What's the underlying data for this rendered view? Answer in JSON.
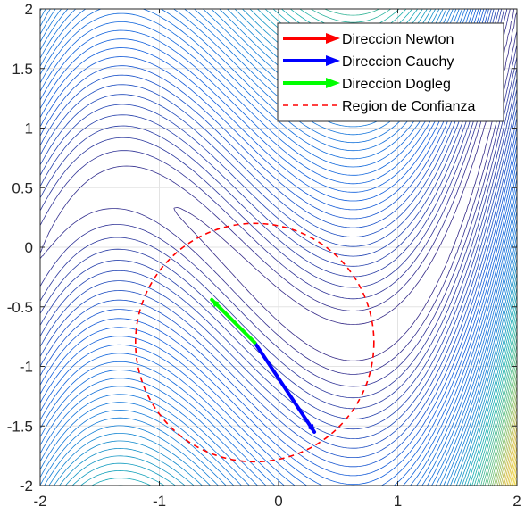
{
  "chart_data": {
    "type": "line",
    "subtype": "contour-with-vectors",
    "title": "",
    "xlabel": "",
    "ylabel": "",
    "xlim": [
      -2,
      2
    ],
    "ylim": [
      -2,
      2
    ],
    "xticks": [
      -2,
      -1,
      0,
      1,
      2
    ],
    "yticks": [
      -2,
      -1.5,
      -1,
      -0.5,
      0,
      0.5,
      1,
      1.5,
      2
    ],
    "xtick_labels": [
      "-2",
      "-1",
      "0",
      "1",
      "2"
    ],
    "ytick_labels": [
      "-2",
      "-1.5",
      "-1",
      "-0.5",
      "0",
      "0.5",
      "1",
      "1.5",
      "2"
    ],
    "grid": true,
    "legend_position": "top-right",
    "trust_region": {
      "name": "Region de Confianza",
      "center": [
        -0.2,
        -0.8
      ],
      "radius": 1.0,
      "color": "#ff0000",
      "style": "dashed"
    },
    "series": [
      {
        "name": "Direccion Newton",
        "color": "#ff0000",
        "start": [
          -0.2,
          -0.8
        ],
        "end": [
          -0.2,
          -0.8
        ]
      },
      {
        "name": "Direccion Cauchy",
        "color": "#0000ff",
        "start": [
          -0.2,
          -0.8
        ],
        "end": [
          0.3,
          -1.55
        ]
      },
      {
        "name": "Direccion Dogleg",
        "color": "#00ff00",
        "start": [
          -0.2,
          -0.8
        ],
        "end": [
          -0.56,
          -0.44
        ]
      }
    ],
    "contour_function": "100*(y - x^2)^2 + (1 - x)^2 evaluated on (x+0.2, y+0.8) shifted frame"
  }
}
